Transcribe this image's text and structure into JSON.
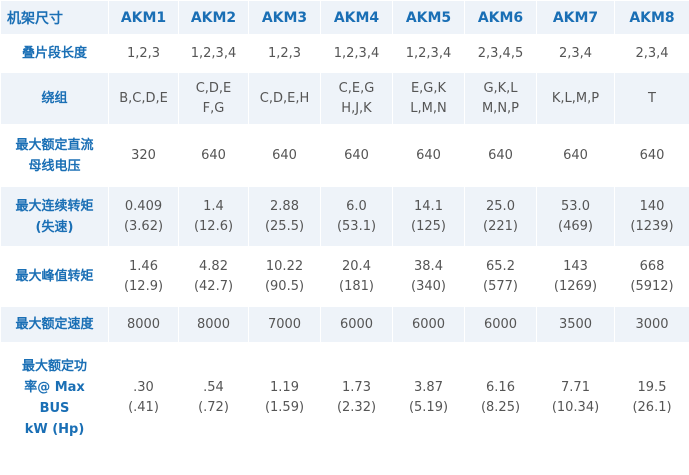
{
  "header": {
    "label": "机架尺寸",
    "models": [
      "AKM1",
      "AKM2",
      "AKM3",
      "AKM4",
      "AKM5",
      "AKM6",
      "AKM7",
      "AKM8"
    ]
  },
  "rows": [
    {
      "label": [
        "叠片段长度"
      ],
      "values": [
        [
          "1,2,3"
        ],
        [
          "1,2,3,4"
        ],
        [
          "1,2,3"
        ],
        [
          "1,2,3,4"
        ],
        [
          "1,2,3,4"
        ],
        [
          "2,3,4,5"
        ],
        [
          "2,3,4"
        ],
        [
          "2,3,4"
        ]
      ]
    },
    {
      "label": [
        "绕组"
      ],
      "values": [
        [
          "B,C,D,E"
        ],
        [
          "C,D,E",
          "F,G"
        ],
        [
          "C,D,E,H"
        ],
        [
          "C,E,G",
          "H,J,K"
        ],
        [
          "E,G,K",
          "L,M,N"
        ],
        [
          "G,K,L",
          "M,N,P"
        ],
        [
          "K,L,M,P"
        ],
        [
          "T"
        ]
      ]
    },
    {
      "label": [
        "最大额定直流",
        "母线电压"
      ],
      "values": [
        [
          "320"
        ],
        [
          "640"
        ],
        [
          "640"
        ],
        [
          "640"
        ],
        [
          "640"
        ],
        [
          "640"
        ],
        [
          "640"
        ],
        [
          "640"
        ]
      ]
    },
    {
      "label": [
        "最大连续转矩",
        "(失速)"
      ],
      "values": [
        [
          "0.409",
          "(3.62)"
        ],
        [
          "1.4",
          "(12.6)"
        ],
        [
          "2.88",
          "(25.5)"
        ],
        [
          "6.0",
          "(53.1)"
        ],
        [
          "14.1",
          "(125)"
        ],
        [
          "25.0",
          "(221)"
        ],
        [
          "53.0",
          "(469)"
        ],
        [
          "140",
          "(1239)"
        ]
      ]
    },
    {
      "label": [
        "最大峰值转矩"
      ],
      "values": [
        [
          "1.46",
          "(12.9)"
        ],
        [
          "4.82",
          "(42.7)"
        ],
        [
          "10.22",
          "(90.5)"
        ],
        [
          "20.4",
          "(181)"
        ],
        [
          "38.4",
          "(340)"
        ],
        [
          "65.2",
          "(577)"
        ],
        [
          "143",
          "(1269)"
        ],
        [
          "668",
          "(5912)"
        ]
      ]
    },
    {
      "label": [
        "最大额定速度"
      ],
      "values": [
        [
          "8000"
        ],
        [
          "8000"
        ],
        [
          "7000"
        ],
        [
          "6000"
        ],
        [
          "6000"
        ],
        [
          "6000"
        ],
        [
          "3500"
        ],
        [
          "3000"
        ]
      ]
    },
    {
      "label": [
        "最大额定功",
        "率@ Max",
        "BUS",
        "kW (Hp)"
      ],
      "values": [
        [
          ".30",
          "(.41)"
        ],
        [
          ".54",
          "(.72)"
        ],
        [
          "1.19",
          "(1.59)"
        ],
        [
          "1.73",
          "(2.32)"
        ],
        [
          "3.87",
          "(5.19)"
        ],
        [
          "6.16",
          "(8.25)"
        ],
        [
          "7.71",
          "(10.34)"
        ],
        [
          "19.5",
          "(26.1)"
        ]
      ]
    }
  ]
}
